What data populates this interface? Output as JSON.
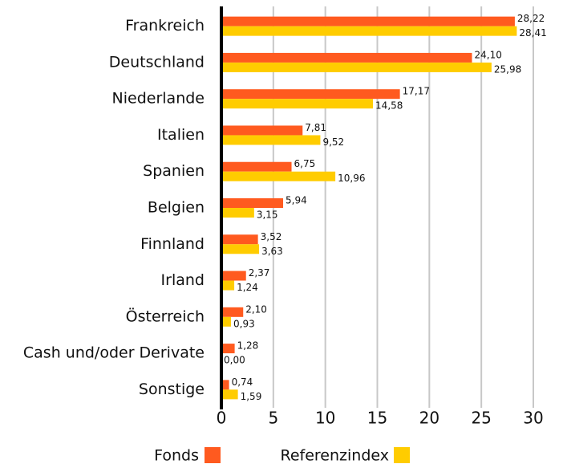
{
  "chart_data": {
    "type": "bar",
    "orientation": "horizontal",
    "categories": [
      "Frankreich",
      "Deutschland",
      "Niederlande",
      "Italien",
      "Spanien",
      "Belgien",
      "Finnland",
      "Irland",
      "Österreich",
      "Cash und/oder Derivate",
      "Sonstige"
    ],
    "series": [
      {
        "name": "Fonds",
        "color": "#ff5a1f",
        "values": [
          28.22,
          24.1,
          17.17,
          7.81,
          6.75,
          5.94,
          3.52,
          2.37,
          2.1,
          1.28,
          0.74
        ],
        "value_labels": [
          "28,22",
          "24,10",
          "17,17",
          "7,81",
          "6,75",
          "5,94",
          "3,52",
          "2,37",
          "2,10",
          "1,28",
          "0,74"
        ]
      },
      {
        "name": "Referenzindex",
        "color": "#ffcc00",
        "values": [
          28.41,
          25.98,
          14.58,
          9.52,
          10.96,
          3.15,
          3.63,
          1.24,
          0.93,
          0.0,
          1.59
        ],
        "value_labels": [
          "28,41",
          "25,98",
          "14,58",
          "9,52",
          "10,96",
          "3,15",
          "3,63",
          "1,24",
          "0,93",
          "0,00",
          "1,59"
        ]
      }
    ],
    "xlim": [
      0,
      30
    ],
    "xticks": [
      0,
      5,
      10,
      15,
      20,
      25,
      30
    ],
    "grid": true,
    "legend": "bottom"
  }
}
